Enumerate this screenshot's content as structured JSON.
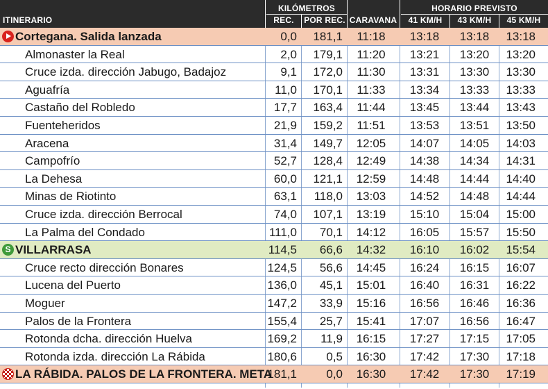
{
  "header": {
    "itinerario": "ITINERARIO",
    "kilometros": "KILÓMETROS",
    "rec": "REC.",
    "por_rec": "POR REC.",
    "caravana": "CARAVANA",
    "horario": "HORARIO PREVISTO",
    "kmh41": "41 KM/H",
    "kmh43": "43 KM/H",
    "kmh45": "45 KM/H"
  },
  "rows": [
    {
      "name": "Cortegana. Salida lanzada",
      "rec": "0,0",
      "por": "181,1",
      "car": "11:18",
      "t41": "13:18",
      "t43": "13:18",
      "t45": "13:18"
    },
    {
      "name": "Almonaster la Real",
      "rec": "2,0",
      "por": "179,1",
      "car": "11:20",
      "t41": "13:21",
      "t43": "13:20",
      "t45": "13:20"
    },
    {
      "name": "Cruce izda. dirección Jabugo, Badajoz",
      "rec": "9,1",
      "por": "172,0",
      "car": "11:30",
      "t41": "13:31",
      "t43": "13:30",
      "t45": "13:30"
    },
    {
      "name": "Aguafría",
      "rec": "11,0",
      "por": "170,1",
      "car": "11:33",
      "t41": "13:34",
      "t43": "13:33",
      "t45": "13:33"
    },
    {
      "name": "Castaño del Robledo",
      "rec": "17,7",
      "por": "163,4",
      "car": "11:44",
      "t41": "13:45",
      "t43": "13:44",
      "t45": "13:43"
    },
    {
      "name": "Fuenteheridos",
      "rec": "21,9",
      "por": "159,2",
      "car": "11:51",
      "t41": "13:53",
      "t43": "13:51",
      "t45": "13:50"
    },
    {
      "name": "Aracena",
      "rec": "31,4",
      "por": "149,7",
      "car": "12:05",
      "t41": "14:07",
      "t43": "14:05",
      "t45": "14:03"
    },
    {
      "name": "Campofrío",
      "rec": "52,7",
      "por": "128,4",
      "car": "12:49",
      "t41": "14:38",
      "t43": "14:34",
      "t45": "14:31"
    },
    {
      "name": "La Dehesa",
      "rec": "60,0",
      "por": "121,1",
      "car": "12:59",
      "t41": "14:48",
      "t43": "14:44",
      "t45": "14:40"
    },
    {
      "name": "Minas de Riotinto",
      "rec": "63,1",
      "por": "118,0",
      "car": "13:03",
      "t41": "14:52",
      "t43": "14:48",
      "t45": "14:44"
    },
    {
      "name": "Cruce izda. dirección Berrocal",
      "rec": "74,0",
      "por": "107,1",
      "car": "13:19",
      "t41": "15:10",
      "t43": "15:04",
      "t45": "15:00"
    },
    {
      "name": "La Palma del Condado",
      "rec": "111,0",
      "por": "70,1",
      "car": "14:12",
      "t41": "16:05",
      "t43": "15:57",
      "t45": "15:50"
    },
    {
      "name": "VILLARRASA",
      "rec": "114,5",
      "por": "66,6",
      "car": "14:32",
      "t41": "16:10",
      "t43": "16:02",
      "t45": "15:54"
    },
    {
      "name": "Cruce recto dirección Bonares",
      "rec": "124,5",
      "por": "56,6",
      "car": "14:45",
      "t41": "16:24",
      "t43": "16:15",
      "t45": "16:07"
    },
    {
      "name": "Lucena del Puerto",
      "rec": "136,0",
      "por": "45,1",
      "car": "15:01",
      "t41": "16:40",
      "t43": "16:31",
      "t45": "16:22"
    },
    {
      "name": "Moguer",
      "rec": "147,2",
      "por": "33,9",
      "car": "15:16",
      "t41": "16:56",
      "t43": "16:46",
      "t45": "16:36"
    },
    {
      "name": "Palos de la Frontera",
      "rec": "155,4",
      "por": "25,7",
      "car": "15:41",
      "t41": "17:07",
      "t43": "16:56",
      "t45": "16:47"
    },
    {
      "name": "Rotonda dcha. dirección Huelva",
      "rec": "169,2",
      "por": "11,9",
      "car": "16:15",
      "t41": "17:27",
      "t43": "17:15",
      "t45": "17:05"
    },
    {
      "name": "Rotonda izda. dirección La Rábida",
      "rec": "180,6",
      "por": "0,5",
      "car": "16:30",
      "t41": "17:42",
      "t43": "17:30",
      "t45": "17:18"
    },
    {
      "name": "LA RÁBIDA. PALOS DE LA FRONTERA. META",
      "rec": "181,1",
      "por": "0,0",
      "car": "16:30",
      "t41": "17:42",
      "t43": "17:30",
      "t45": "17:19"
    }
  ],
  "icons": {
    "start": "start-play-icon",
    "sprint": "sprint-icon",
    "sprint_glyph": "S",
    "finish": "finish-flag-icon"
  },
  "colors": {
    "header": "#2b2b2b",
    "start_finish_row": "#f6cbb3",
    "sprint_row": "#e0ebc2",
    "row_rule": "#6b8fc4"
  }
}
